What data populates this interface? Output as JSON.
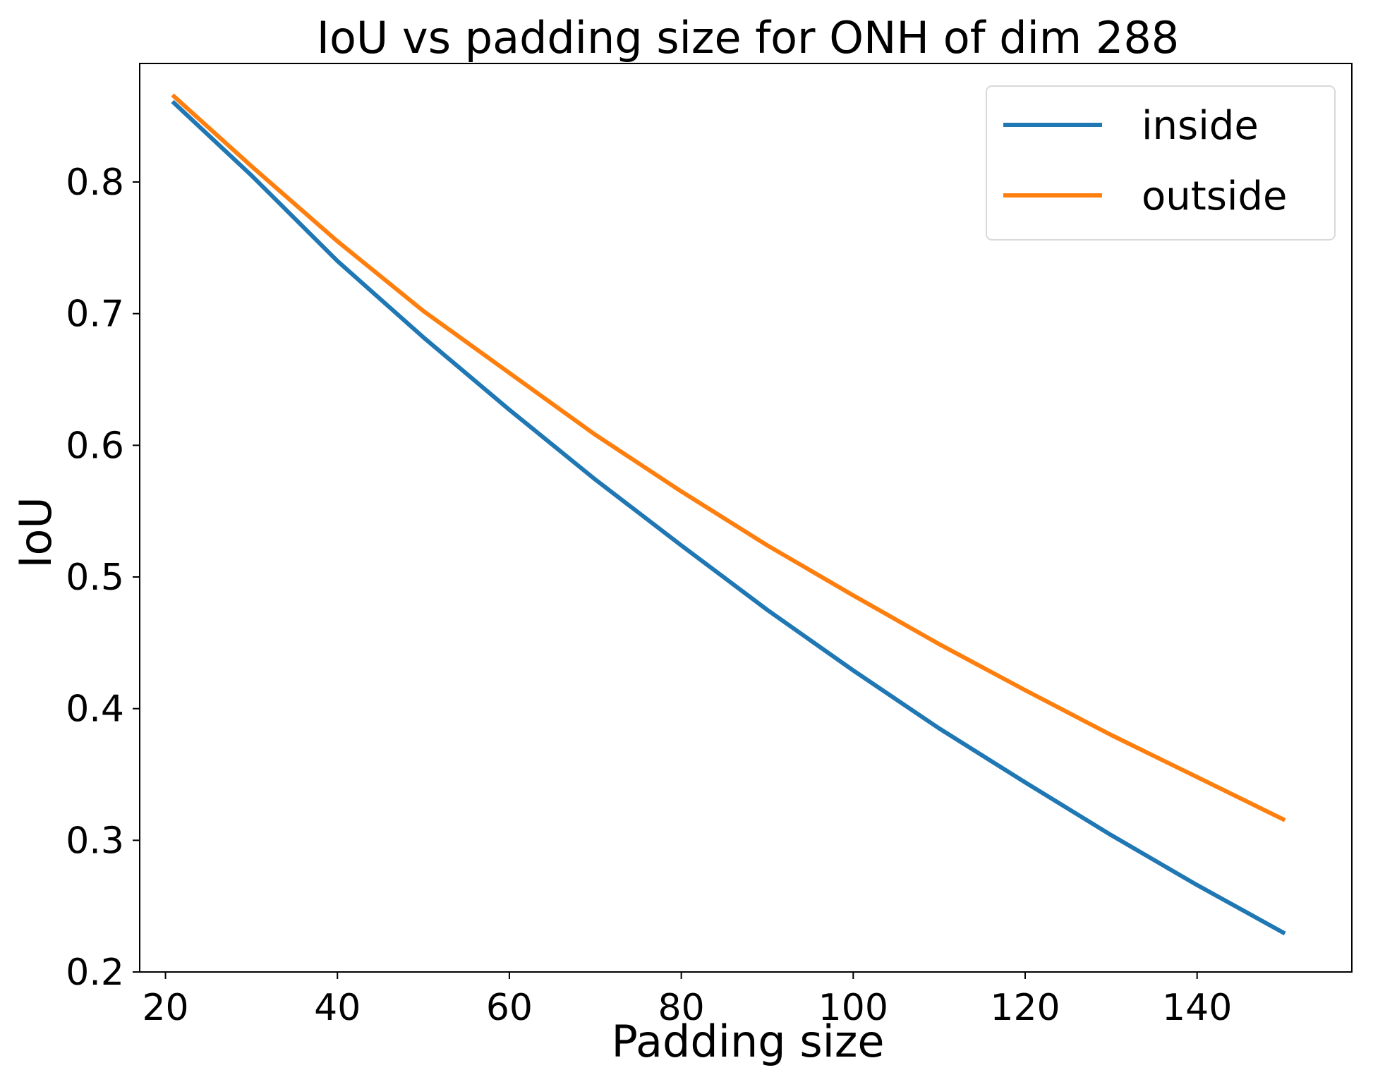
{
  "chart_data": {
    "type": "line",
    "title": "IoU vs padding size for ONH of dim 288",
    "xlabel": "Padding size",
    "ylabel": "IoU",
    "xlim": [
      17,
      158
    ],
    "ylim": [
      0.2,
      0.89
    ],
    "xticks": [
      20,
      40,
      60,
      80,
      100,
      120,
      140
    ],
    "xtick_labels": [
      "20",
      "40",
      "60",
      "80",
      "100",
      "120",
      "140"
    ],
    "yticks": [
      0.2,
      0.3,
      0.4,
      0.5,
      0.6,
      0.7,
      0.8
    ],
    "ytick_labels": [
      "0.2",
      "0.3",
      "0.4",
      "0.5",
      "0.6",
      "0.7",
      "0.8"
    ],
    "grid": false,
    "legend": {
      "position": "top-right"
    },
    "x": [
      21,
      30,
      40,
      50,
      60,
      70,
      80,
      90,
      100,
      110,
      120,
      130,
      140,
      150
    ],
    "series": [
      {
        "name": "inside",
        "color": "#1f77b4",
        "values": [
          0.86,
          0.805,
          0.74,
          0.682,
          0.627,
          0.574,
          0.524,
          0.475,
          0.429,
          0.385,
          0.344,
          0.304,
          0.266,
          0.23
        ]
      },
      {
        "name": "outside",
        "color": "#ff7f0e",
        "values": [
          0.865,
          0.812,
          0.755,
          0.702,
          0.655,
          0.608,
          0.565,
          0.524,
          0.486,
          0.449,
          0.414,
          0.38,
          0.348,
          0.316
        ]
      }
    ]
  }
}
